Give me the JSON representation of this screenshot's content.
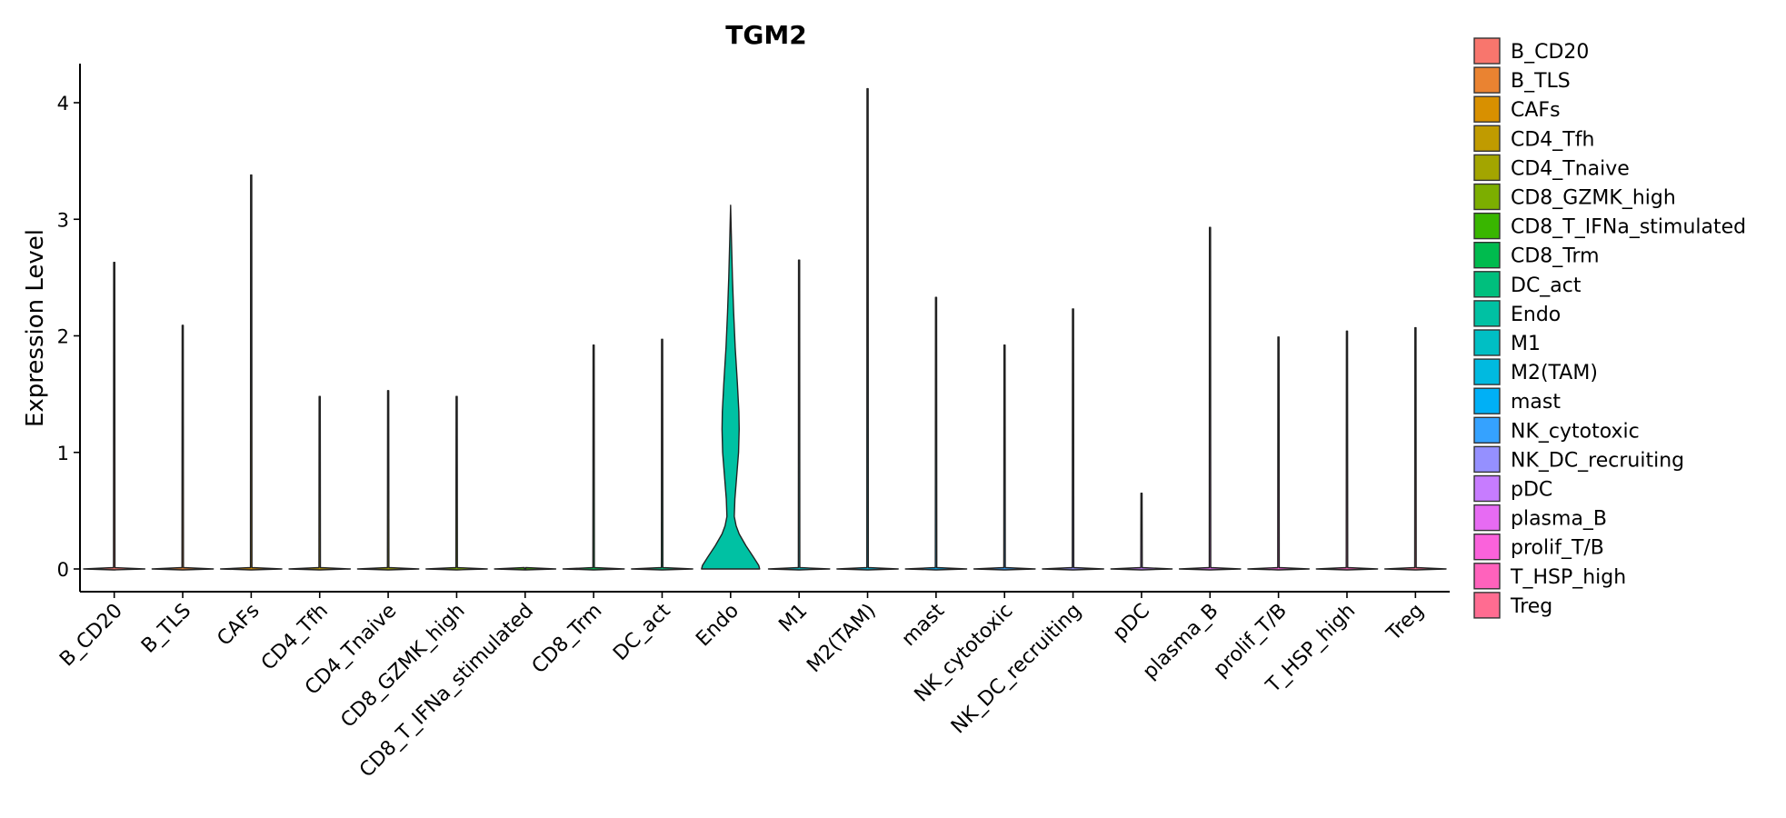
{
  "chart_data": {
    "type": "violin",
    "title": "TGM2",
    "xlabel": "",
    "ylabel": "Expression Level",
    "ylim": [
      -0.2,
      4.32
    ],
    "yticks": [
      0,
      1,
      2,
      3,
      4
    ],
    "grid": false,
    "legend_position": "right",
    "categories": [
      "B_CD20",
      "B_TLS",
      "CAFs",
      "CD4_Tfh",
      "CD4_Tnaive",
      "CD8_GZMK_high",
      "CD8_T_IFNa_stimulated",
      "CD8_Trm",
      "DC_act",
      "Endo",
      "M1",
      "M2(TAM)",
      "mast",
      "NK_cytotoxic",
      "NK_DC_recruiting",
      "pDC",
      "plasma_B",
      "prolif_T/B",
      "T_HSP_high",
      "Treg"
    ],
    "colors": [
      "#F8766D",
      "#EA8331",
      "#D89000",
      "#C09B00",
      "#A3A500",
      "#7CAE00",
      "#39B600",
      "#00BB4E",
      "#00BF7D",
      "#00C1A3",
      "#00BFC4",
      "#00BAE0",
      "#00B0F6",
      "#35A2FF",
      "#9590FF",
      "#C77CFF",
      "#E76BF3",
      "#FA62DB",
      "#FF62BC",
      "#FF6C91"
    ],
    "max_values": [
      2.63,
      2.09,
      3.38,
      1.48,
      1.53,
      1.48,
      0.0,
      1.92,
      1.97,
      3.12,
      2.65,
      4.12,
      2.33,
      1.92,
      2.23,
      0.65,
      2.93,
      1.99,
      2.04,
      2.07
    ],
    "violin_profiles": {
      "Endo": {
        "y": [
          0.0,
          0.03,
          0.1,
          0.2,
          0.3,
          0.37,
          0.45,
          0.6,
          0.8,
          1.0,
          1.2,
          1.35,
          1.6,
          1.9,
          2.2,
          2.5,
          2.8,
          3.12
        ],
        "half_width": [
          0.95,
          0.92,
          0.75,
          0.5,
          0.28,
          0.18,
          0.12,
          0.14,
          0.2,
          0.26,
          0.28,
          0.27,
          0.22,
          0.15,
          0.1,
          0.06,
          0.03,
          0.0
        ]
      }
    },
    "legend": [
      "B_CD20",
      "B_TLS",
      "CAFs",
      "CD4_Tfh",
      "CD4_Tnaive",
      "CD8_GZMK_high",
      "CD8_T_IFNa_stimulated",
      "CD8_Trm",
      "DC_act",
      "Endo",
      "M1",
      "M2(TAM)",
      "mast",
      "NK_cytotoxic",
      "NK_DC_recruiting",
      "pDC",
      "plasma_B",
      "prolif_T/B",
      "T_HSP_high",
      "Treg"
    ]
  }
}
